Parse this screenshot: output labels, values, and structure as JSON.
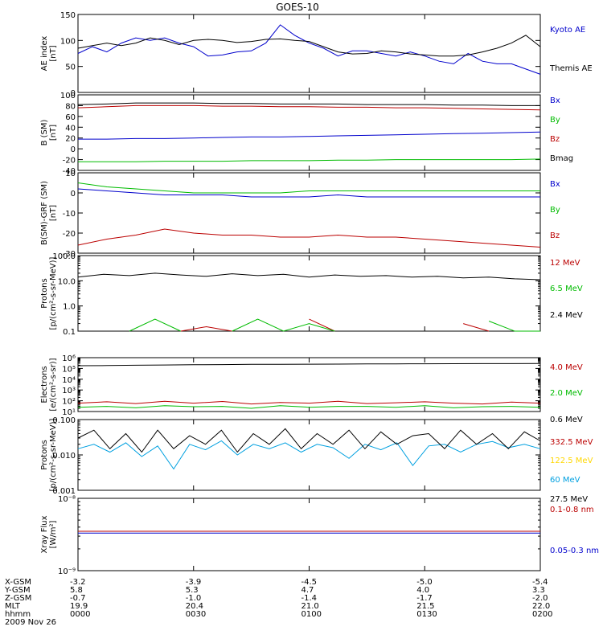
{
  "title": "GOES-10",
  "colors": {
    "black": "#000000",
    "blue": "#0000cc",
    "green": "#00bb00",
    "red": "#bb0000",
    "cyan": "#00a0e0",
    "yellow": "#ffd700"
  },
  "chart_data": [
    {
      "type": "line",
      "panel": "ae-index",
      "ylabel_lines": [
        "AE index",
        "[nT]"
      ],
      "ylim": [
        0,
        150
      ],
      "yscale": "linear",
      "yticks": [
        0,
        50,
        100,
        150
      ],
      "ytick_labels": [
        "0",
        "50",
        "100",
        "150"
      ],
      "series": [
        {
          "name": "Kyoto AE",
          "color": "#0000cc",
          "values": [
            75,
            88,
            78,
            95,
            105,
            100,
            105,
            95,
            88,
            70,
            72,
            78,
            80,
            95,
            130,
            110,
            95,
            85,
            70,
            80,
            80,
            75,
            70,
            78,
            70,
            60,
            55,
            75,
            60,
            55,
            55,
            45,
            35
          ]
        },
        {
          "name": "Themis AE",
          "color": "#000000",
          "values": [
            85,
            90,
            95,
            90,
            95,
            105,
            100,
            92,
            100,
            102,
            100,
            96,
            98,
            102,
            103,
            100,
            98,
            88,
            78,
            74,
            75,
            80,
            78,
            74,
            72,
            70,
            70,
            72,
            78,
            85,
            95,
            110,
            88
          ]
        }
      ]
    },
    {
      "type": "line",
      "panel": "b-sm",
      "ylabel_lines": [
        "B (SM)",
        "[nT]"
      ],
      "ylim": [
        -40,
        100
      ],
      "yscale": "linear",
      "yticks": [
        -40,
        -20,
        0,
        20,
        40,
        60,
        80,
        100
      ],
      "ytick_labels": [
        "-40",
        "-20",
        "0",
        "20",
        "40",
        "60",
        "80",
        "100"
      ],
      "series": [
        {
          "name": "Bx",
          "color": "#0000cc",
          "values": [
            18,
            18,
            19,
            19,
            20,
            21,
            22,
            22,
            23,
            24,
            25,
            26,
            27,
            28,
            29,
            30,
            31
          ]
        },
        {
          "name": "By",
          "color": "#00bb00",
          "values": [
            -24,
            -24,
            -24,
            -23,
            -23,
            -23,
            -22,
            -22,
            -22,
            -21,
            -21,
            -20,
            -20,
            -20,
            -20,
            -20,
            -19
          ]
        },
        {
          "name": "Bz",
          "color": "#bb0000",
          "values": [
            76,
            78,
            80,
            80,
            80,
            79,
            79,
            78,
            78,
            77,
            77,
            76,
            76,
            75,
            74,
            73,
            72
          ]
        },
        {
          "name": "Bmag",
          "color": "#000000",
          "values": [
            82,
            83,
            85,
            85,
            85,
            84,
            84,
            83,
            83,
            83,
            82,
            82,
            82,
            81,
            81,
            80,
            80
          ]
        }
      ]
    },
    {
      "type": "line",
      "panel": "b-minus-grf",
      "ylabel_lines": [
        "B(SM)-GRF (SM)",
        "[nT]"
      ],
      "ylim": [
        -30,
        10
      ],
      "yscale": "linear",
      "yticks": [
        -30,
        -20,
        -10,
        0,
        10
      ],
      "ytick_labels": [
        "-30",
        "-20",
        "-10",
        "0",
        "10"
      ],
      "series": [
        {
          "name": "Bx",
          "color": "#0000cc",
          "values": [
            2,
            1,
            0,
            -1,
            -1,
            -1,
            -2,
            -2,
            -2,
            -1,
            -2,
            -2,
            -2,
            -2,
            -2,
            -2,
            -2
          ]
        },
        {
          "name": "By",
          "color": "#00bb00",
          "values": [
            5,
            3,
            2,
            1,
            0,
            0,
            0,
            0,
            1,
            1,
            1,
            1,
            1,
            1,
            1,
            1,
            1
          ]
        },
        {
          "name": "Bz",
          "color": "#bb0000",
          "values": [
            -26,
            -23,
            -21,
            -18,
            -20,
            -21,
            -21,
            -22,
            -22,
            -21,
            -22,
            -22,
            -23,
            -24,
            -25,
            -26,
            -27
          ]
        }
      ]
    },
    {
      "type": "line",
      "panel": "protons-high",
      "ylabel_lines": [
        "Protons",
        "[p/(cm²-s-sr-MeV)]"
      ],
      "ylim": [
        0.1,
        100
      ],
      "yscale": "log",
      "yticks": [
        0.1,
        1,
        10,
        100
      ],
      "ytick_labels": [
        "0.1",
        "1.0",
        "10.0",
        "100.0"
      ],
      "series": [
        {
          "name": "12 MeV",
          "color": "#bb0000",
          "values": [
            null,
            null,
            null,
            null,
            0.1,
            0.15,
            0.1,
            null,
            null,
            0.3,
            0.1,
            null,
            null,
            null,
            null,
            0.2,
            0.1,
            null,
            null
          ]
        },
        {
          "name": "6.5 MeV",
          "color": "#00bb00",
          "values": [
            null,
            null,
            0.1,
            0.3,
            0.1,
            null,
            0.1,
            0.3,
            0.1,
            0.2,
            0.1,
            null,
            0.3,
            null,
            0.15,
            null,
            0.25,
            0.1,
            0.1
          ]
        },
        {
          "name": "2.4 MeV",
          "color": "#000000",
          "values": [
            14,
            18,
            16,
            20,
            17,
            15,
            19,
            16,
            18,
            14,
            17,
            15,
            16,
            14,
            15,
            13,
            14,
            12,
            11
          ]
        }
      ]
    },
    {
      "type": "line",
      "panel": "electrons",
      "ylabel_lines": [
        "Electrons",
        "[e/(cm²-s-sr)]"
      ],
      "ylim": [
        10,
        1000000
      ],
      "yscale": "log",
      "yticks": [
        10,
        100,
        1000,
        10000,
        100000,
        1000000
      ],
      "ytick_labels": [
        "10¹",
        "10²",
        "10³",
        "10⁴",
        "10⁵",
        "10⁶"
      ],
      "series": [
        {
          "name": "4.0 MeV",
          "color": "#bb0000",
          "values": [
            60,
            80,
            55,
            90,
            60,
            85,
            50,
            70,
            60,
            90,
            55,
            65,
            80,
            60,
            50,
            75,
            60
          ]
        },
        {
          "name": "2.0 MeV",
          "color": "#00bb00",
          "values": [
            25,
            30,
            22,
            35,
            28,
            30,
            20,
            35,
            25,
            30,
            30,
            25,
            35,
            22,
            28,
            30,
            25
          ]
        },
        {
          "name": "0.6 MeV",
          "color": "#000000",
          "values": [
            180000,
            185000,
            200000,
            210000,
            220000,
            230000,
            240000,
            245000,
            250000,
            255000,
            260000,
            265000,
            270000,
            275000,
            280000,
            280000,
            285000
          ]
        }
      ]
    },
    {
      "type": "line",
      "panel": "protons-low",
      "ylabel_lines": [
        "Protons",
        "[p/(cm²-s-sr-MeV)]"
      ],
      "ylim": [
        0.001,
        0.1
      ],
      "yscale": "log",
      "yticks": [
        0.001,
        0.01,
        0.1
      ],
      "ytick_labels": [
        "0.001",
        "0.010",
        "0.100"
      ],
      "series": [
        {
          "name": "332.5 MeV",
          "color": "#bb0000",
          "values": []
        },
        {
          "name": "122.5 MeV",
          "color": "#ffd700",
          "values": []
        },
        {
          "name": "60 MeV",
          "color": "#00a0e0",
          "values": [
            0.015,
            0.02,
            0.012,
            0.022,
            0.009,
            0.018,
            0.004,
            0.02,
            0.014,
            0.025,
            0.01,
            0.02,
            0.015,
            0.022,
            0.012,
            0.02,
            0.016,
            0.008,
            0.02,
            0.014,
            0.022,
            0.005,
            0.018,
            0.02,
            0.012,
            0.02,
            0.024,
            0.016,
            0.02,
            0.015
          ]
        },
        {
          "name": "27.5 MeV",
          "color": "#000000",
          "values": [
            0.03,
            0.05,
            0.015,
            0.04,
            0.012,
            0.05,
            0.015,
            0.035,
            0.02,
            0.05,
            0.012,
            0.04,
            0.02,
            0.055,
            0.015,
            0.04,
            0.02,
            0.05,
            0.015,
            0.045,
            0.02,
            0.035,
            0.04,
            0.015,
            0.05,
            0.02,
            0.04,
            0.015,
            0.045,
            0.025
          ]
        }
      ]
    },
    {
      "type": "line",
      "panel": "xray",
      "ylabel_lines": [
        "Xray Flux",
        "[W/m²]"
      ],
      "ylim": [
        1e-09,
        1e-08
      ],
      "yscale": "log",
      "yticks": [
        1e-09,
        1e-08
      ],
      "ytick_labels": [
        "10⁻⁹",
        "10⁻⁸"
      ],
      "series": [
        {
          "name": "0.1-0.8 nm",
          "color": "#bb0000",
          "values": [
            3.5e-09,
            3.5e-09,
            3.5e-09,
            3.5e-09,
            3.5e-09,
            3.5e-09,
            3.5e-09,
            3.5e-09,
            3.5e-09
          ]
        },
        {
          "name": "0.05-0.3 nm",
          "color": "#0000cc",
          "values": [
            3.3e-09,
            3.3e-09,
            3.3e-09,
            3.3e-09,
            3.3e-09,
            3.3e-09,
            3.3e-09,
            3.3e-09,
            3.3e-09
          ]
        }
      ]
    }
  ],
  "footer": {
    "row_labels": [
      "X-GSM",
      "Y-GSM",
      "Z-GSM",
      "MLT",
      "hhmm",
      "2009 Nov 26"
    ],
    "columns": [
      [
        "-3.2",
        "5.8",
        "-0.7",
        "19.9",
        "0000"
      ],
      [
        "-3.9",
        "5.3",
        "-1.0",
        "20.4",
        "0030"
      ],
      [
        "-4.5",
        "4.7",
        "-1.4",
        "21.0",
        "0100"
      ],
      [
        "-5.0",
        "4.0",
        "-1.7",
        "21.5",
        "0130"
      ],
      [
        "-5.4",
        "3.3",
        "-2.0",
        "22.0",
        "0200"
      ]
    ]
  }
}
